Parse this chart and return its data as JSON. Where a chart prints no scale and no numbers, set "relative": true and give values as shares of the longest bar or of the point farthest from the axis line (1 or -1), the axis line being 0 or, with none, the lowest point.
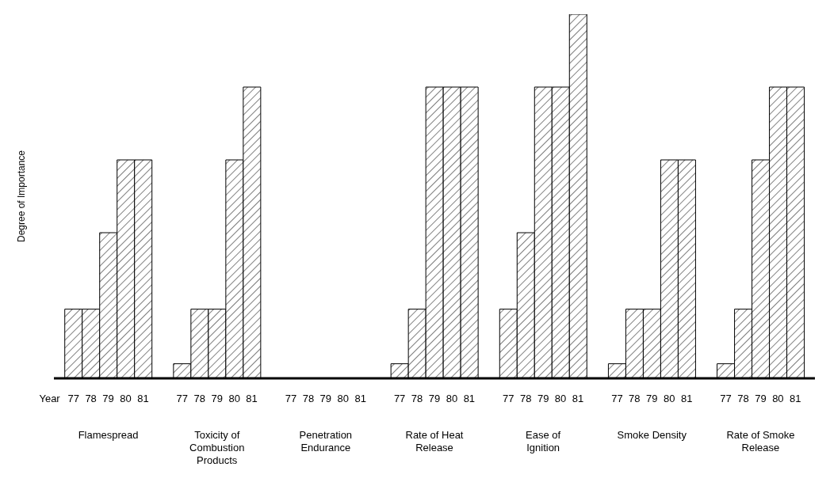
{
  "chart_data": {
    "type": "bar",
    "relative": true,
    "ylabel": "Degree of Importance",
    "xlabel": "Year",
    "categories": [
      "Flamespread",
      "Toxicity of Combustion Products",
      "Penetration Endurance",
      "Rate of Heat Release",
      "Ease of Ignition",
      "Smoke Density",
      "Rate of Smoke Release"
    ],
    "series": [
      {
        "name": "77",
        "color": "#000000",
        "values": [
          0.19,
          0.04,
          0,
          0.04,
          0.19,
          0.04,
          0.04
        ]
      },
      {
        "name": "78",
        "color": "#000000",
        "values": [
          0.19,
          0.19,
          0,
          0.19,
          0.4,
          0.19,
          0.19
        ]
      },
      {
        "name": "79",
        "color": "#000000",
        "values": [
          0.4,
          0.19,
          0,
          0.8,
          0.8,
          0.19,
          0.6
        ]
      },
      {
        "name": "80",
        "color": "#000000",
        "values": [
          0.6,
          0.6,
          0,
          0.8,
          0.8,
          0.6,
          0.8
        ]
      },
      {
        "name": "81",
        "color": "#000000",
        "values": [
          0.6,
          0.8,
          0,
          0.8,
          1,
          0.6,
          0.8
        ]
      }
    ],
    "legend": false,
    "grid": false
  }
}
